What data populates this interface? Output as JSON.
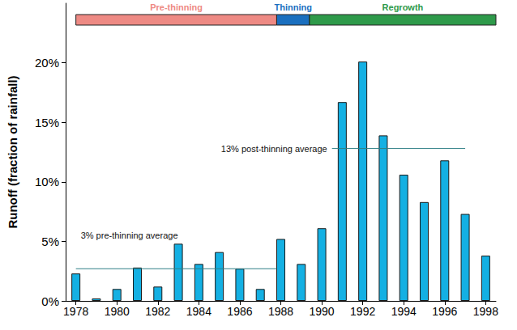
{
  "chart_data": {
    "type": "bar",
    "x": [
      1978,
      1979,
      1980,
      1981,
      1982,
      1983,
      1984,
      1985,
      1986,
      1987,
      1988,
      1989,
      1990,
      1991,
      1992,
      1993,
      1994,
      1995,
      1996,
      1997,
      1998
    ],
    "values": [
      2.3,
      0.2,
      1.0,
      2.8,
      1.2,
      4.8,
      3.1,
      4.1,
      2.7,
      1.0,
      5.2,
      3.1,
      6.1,
      16.7,
      20.1,
      13.9,
      10.6,
      8.3,
      11.8,
      7.3,
      3.8
    ],
    "color": "#14b0e3",
    "xlim": [
      1977.5,
      1998.5
    ],
    "xticks": [
      1978,
      1980,
      1982,
      1984,
      1986,
      1988,
      1990,
      1992,
      1994,
      1996,
      1998
    ],
    "ylim": [
      0,
      25
    ],
    "yticks": [
      {
        "value": 0,
        "label": "0%"
      },
      {
        "value": 5,
        "label": "5%"
      },
      {
        "value": 10,
        "label": "10%"
      },
      {
        "value": 15,
        "label": "15%"
      },
      {
        "value": 20,
        "label": "20%"
      }
    ],
    "y_label": "Runoff (fraction of rainfall)",
    "grid": false,
    "reference_lines": [
      {
        "label": "3% pre-thinning average",
        "value": 2.7,
        "x": [
          1978,
          1987.8
        ],
        "color": "#2f7f86"
      },
      {
        "label": "13% post-thinning average",
        "value": 12.8,
        "x": [
          1990.5,
          1997
        ],
        "color": "#2f7f86"
      }
    ],
    "phases": [
      {
        "label": "Pre-thinning",
        "start": 1978,
        "end": 1987.8,
        "color": "#ee8a84"
      },
      {
        "label": "Thinning",
        "start": 1987.8,
        "end": 1989.4,
        "color": "#1a6fbf"
      },
      {
        "label": "Regrowth",
        "start": 1989.4,
        "end": 1998.5,
        "color": "#2e9a4a"
      }
    ]
  }
}
